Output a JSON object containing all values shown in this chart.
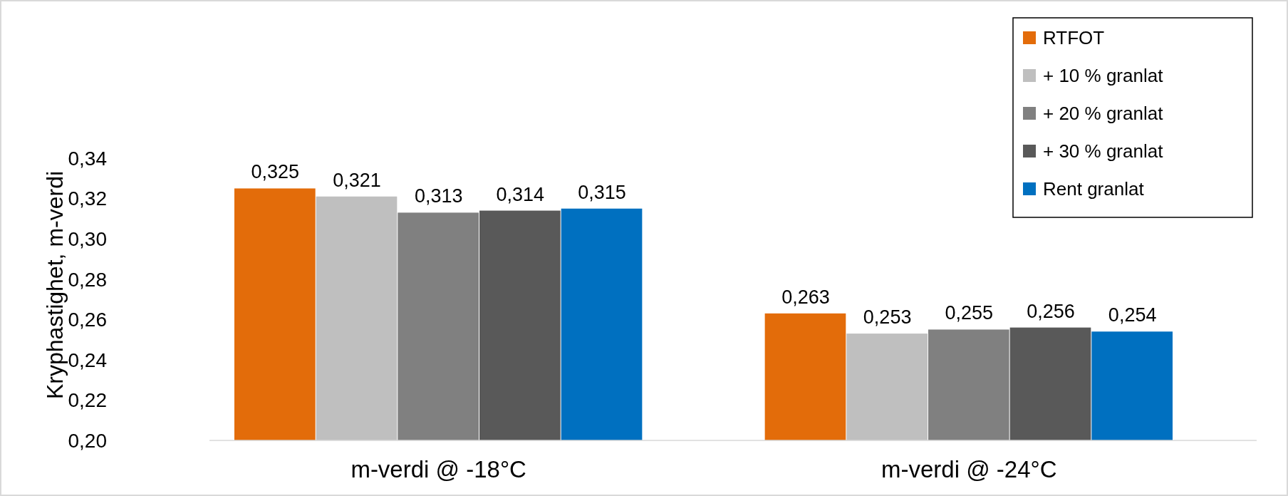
{
  "chart_data": {
    "type": "bar",
    "ylabel": "Kryphastighet, m-verdi",
    "categories": [
      "m-verdi @ -18°C",
      "m-verdi @ -24°C"
    ],
    "series": [
      {
        "name": "RTFOT",
        "color": "#e36c0a",
        "values": [
          0.325,
          0.263
        ],
        "value_labels": [
          "0,325",
          "0,263"
        ]
      },
      {
        "name": "+ 10 % granlat",
        "color": "#bfbfbf",
        "values": [
          0.321,
          0.253
        ],
        "value_labels": [
          "0,321",
          "0,253"
        ]
      },
      {
        "name": "+ 20 % granlat",
        "color": "#808080",
        "values": [
          0.313,
          0.255
        ],
        "value_labels": [
          "0,313",
          "0,255"
        ]
      },
      {
        "name": "+ 30 % granlat",
        "color": "#595959",
        "values": [
          0.314,
          0.256
        ],
        "value_labels": [
          "0,314",
          "0,256"
        ]
      },
      {
        "name": "Rent granlat",
        "color": "#0070c0",
        "values": [
          0.315,
          0.254
        ],
        "value_labels": [
          "0,315",
          "0,254"
        ]
      }
    ],
    "ylim": [
      0.2,
      0.34
    ],
    "yticks": [
      {
        "value": 0.2,
        "label": "0,20"
      },
      {
        "value": 0.22,
        "label": "0,22"
      },
      {
        "value": 0.24,
        "label": "0,24"
      },
      {
        "value": 0.26,
        "label": "0,26"
      },
      {
        "value": 0.28,
        "label": "0,28"
      },
      {
        "value": 0.3,
        "label": "0,30"
      },
      {
        "value": 0.32,
        "label": "0,32"
      },
      {
        "value": 0.34,
        "label": "0,34"
      }
    ],
    "grid": false,
    "legend": "top right"
  }
}
